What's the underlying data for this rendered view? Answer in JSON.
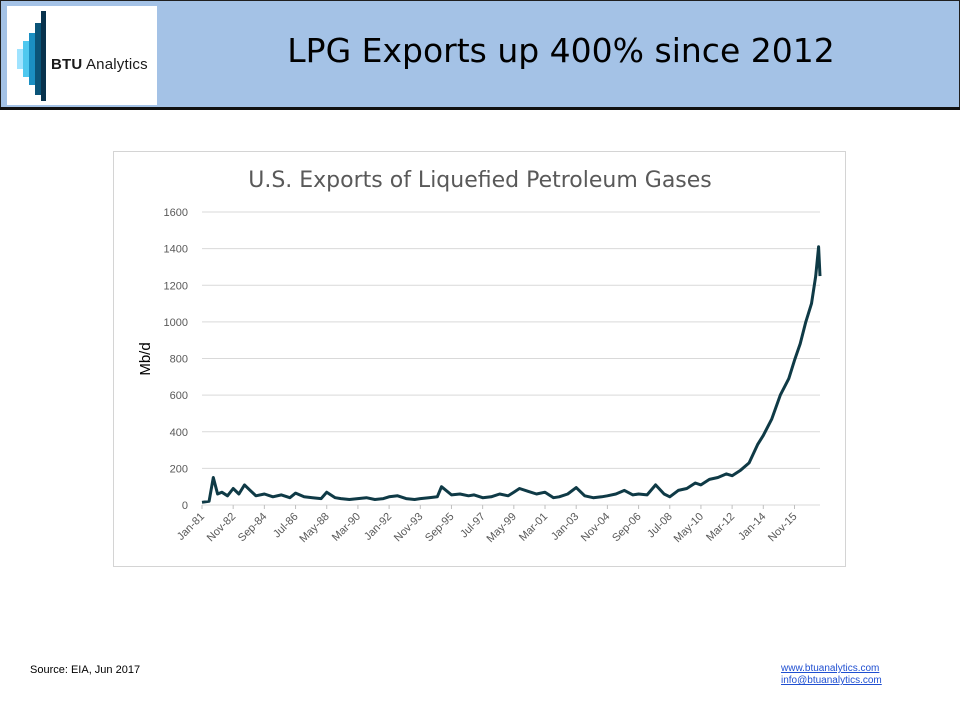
{
  "header": {
    "logo_text_bold": "BTU",
    "logo_text_rest": " Analytics",
    "title": "LPG Exports up 400% since 2012"
  },
  "colors": {
    "header_bg": "#a4c2e6",
    "line": "#0f3a46",
    "grid": "#d9d9d9",
    "logo_bars": [
      "#9fe3ff",
      "#4fc8ef",
      "#1b8fc2",
      "#0b5478",
      "#08324d"
    ]
  },
  "footer": {
    "source": "Source: EIA, Jun 2017",
    "website": "www.btuanalytics.com",
    "email": "info@btuanalytics.com"
  },
  "chart_data": {
    "type": "line",
    "title": "U.S. Exports of Liquefied Petroleum Gases",
    "xlabel": "",
    "ylabel": "Mb/d",
    "ylim": [
      0,
      1600
    ],
    "yticks": [
      0,
      200,
      400,
      600,
      800,
      1000,
      1200,
      1400,
      1600
    ],
    "grid": true,
    "legend": "none",
    "x_range": [
      "Jan-81",
      "May-17"
    ],
    "xtick_labels": [
      "Jan-81",
      "Nov-82",
      "Sep-84",
      "Jul-86",
      "May-88",
      "Mar-90",
      "Jan-92",
      "Nov-93",
      "Sep-95",
      "Jul-97",
      "May-99",
      "Mar-01",
      "Jan-03",
      "Nov-04",
      "Sep-06",
      "Jul-08",
      "May-10",
      "Mar-12",
      "Jan-14",
      "Nov-15"
    ],
    "series": [
      {
        "values": [
          [
            "Jan-81",
            15
          ],
          [
            "Jun-81",
            20
          ],
          [
            "Sep-81",
            150
          ],
          [
            "Dec-81",
            60
          ],
          [
            "Mar-82",
            70
          ],
          [
            "Jul-82",
            50
          ],
          [
            "Nov-82",
            90
          ],
          [
            "Mar-83",
            60
          ],
          [
            "Jul-83",
            110
          ],
          [
            "Nov-83",
            80
          ],
          [
            "Mar-84",
            50
          ],
          [
            "Sep-84",
            60
          ],
          [
            "Mar-85",
            45
          ],
          [
            "Sep-85",
            55
          ],
          [
            "Mar-86",
            40
          ],
          [
            "Jul-86",
            65
          ],
          [
            "Jan-87",
            45
          ],
          [
            "Jul-87",
            40
          ],
          [
            "Jan-88",
            35
          ],
          [
            "May-88",
            70
          ],
          [
            "Nov-88",
            40
          ],
          [
            "Mar-89",
            35
          ],
          [
            "Sep-89",
            30
          ],
          [
            "Mar-90",
            35
          ],
          [
            "Sep-90",
            40
          ],
          [
            "Mar-91",
            30
          ],
          [
            "Sep-91",
            35
          ],
          [
            "Jan-92",
            45
          ],
          [
            "Jul-92",
            50
          ],
          [
            "Jan-93",
            35
          ],
          [
            "Jul-93",
            30
          ],
          [
            "Nov-93",
            35
          ],
          [
            "May-94",
            40
          ],
          [
            "Nov-94",
            45
          ],
          [
            "Feb-95",
            100
          ],
          [
            "Sep-95",
            55
          ],
          [
            "Mar-96",
            60
          ],
          [
            "Sep-96",
            50
          ],
          [
            "Jan-97",
            55
          ],
          [
            "Jul-97",
            40
          ],
          [
            "Jan-98",
            45
          ],
          [
            "Jul-98",
            60
          ],
          [
            "Jan-99",
            50
          ],
          [
            "May-99",
            70
          ],
          [
            "Sep-99",
            90
          ],
          [
            "Mar-00",
            75
          ],
          [
            "Sep-00",
            60
          ],
          [
            "Mar-01",
            70
          ],
          [
            "Sep-01",
            40
          ],
          [
            "Jan-02",
            45
          ],
          [
            "Jul-02",
            60
          ],
          [
            "Jan-03",
            95
          ],
          [
            "Jul-03",
            50
          ],
          [
            "Jan-04",
            40
          ],
          [
            "Jul-04",
            45
          ],
          [
            "Nov-04",
            50
          ],
          [
            "May-05",
            60
          ],
          [
            "Nov-05",
            80
          ],
          [
            "May-06",
            55
          ],
          [
            "Sep-06",
            60
          ],
          [
            "Mar-07",
            55
          ],
          [
            "Sep-07",
            110
          ],
          [
            "Mar-08",
            60
          ],
          [
            "Jul-08",
            45
          ],
          [
            "Jan-09",
            80
          ],
          [
            "Jul-09",
            90
          ],
          [
            "Jan-10",
            120
          ],
          [
            "May-10",
            110
          ],
          [
            "Nov-10",
            140
          ],
          [
            "May-11",
            150
          ],
          [
            "Nov-11",
            170
          ],
          [
            "Mar-12",
            160
          ],
          [
            "Sep-12",
            190
          ],
          [
            "Mar-13",
            230
          ],
          [
            "Sep-13",
            330
          ],
          [
            "Jan-14",
            380
          ],
          [
            "Jul-14",
            470
          ],
          [
            "Jan-15",
            600
          ],
          [
            "Jul-15",
            690
          ],
          [
            "Nov-15",
            790
          ],
          [
            "Mar-16",
            880
          ],
          [
            "Jul-16",
            1000
          ],
          [
            "Nov-16",
            1100
          ],
          [
            "Feb-17",
            1250
          ],
          [
            "Apr-17",
            1410
          ],
          [
            "May-17",
            1250
          ]
        ]
      }
    ]
  }
}
